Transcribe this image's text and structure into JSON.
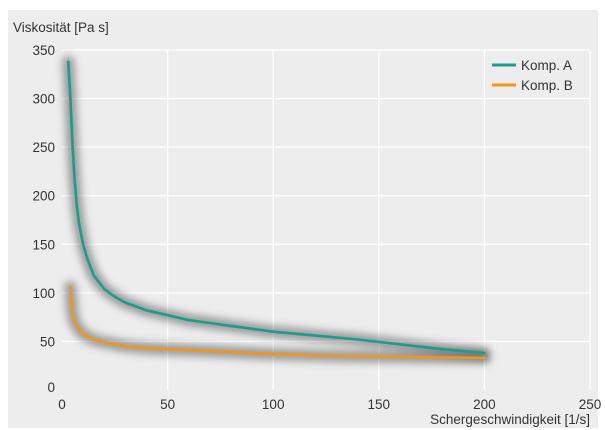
{
  "chart_data": {
    "type": "line",
    "ylabel": "Viskosität [Pa s]",
    "xlabel": "Schergeschwindigkeit [1/s]",
    "xlim": [
      0,
      250
    ],
    "ylim": [
      0,
      350
    ],
    "x_ticks": [
      0,
      50,
      100,
      150,
      200,
      250
    ],
    "y_ticks": [
      0,
      50,
      100,
      150,
      200,
      250,
      300,
      350
    ],
    "grid": true,
    "legend_position": "top-right",
    "background": "#ededed",
    "series": [
      {
        "name": "Komp. A",
        "color": "#1a9e8a",
        "x": [
          3,
          4,
          5,
          6,
          7,
          8,
          10,
          12,
          15,
          20,
          25,
          30,
          40,
          50,
          60,
          70,
          80,
          100,
          120,
          140,
          160,
          180,
          200
        ],
        "y": [
          338,
          300,
          250,
          215,
          190,
          172,
          150,
          135,
          118,
          104,
          96,
          90,
          82,
          77,
          72,
          69,
          66,
          60,
          56,
          52,
          47,
          42,
          38
        ]
      },
      {
        "name": "Komp. B",
        "color": "#f0961e",
        "x": [
          4,
          4.5,
          5,
          6,
          7,
          8,
          10,
          12,
          15,
          20,
          30,
          40,
          50,
          70,
          100,
          130,
          160,
          200
        ],
        "y": [
          106,
          90,
          78,
          70,
          66,
          62,
          58,
          55,
          52,
          49,
          45,
          43,
          42,
          40,
          37,
          35,
          34,
          33
        ]
      }
    ]
  }
}
